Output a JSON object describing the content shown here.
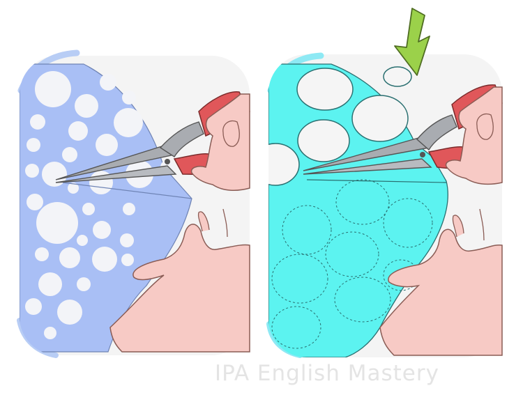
{
  "watermark": {
    "text": "IPA English Mastery"
  },
  "panels": [
    {
      "paper_color": "#a9bff5",
      "dots_color": "#f3f4f8",
      "circle_style": "solid-dots"
    },
    {
      "paper_color": "#5cf3f0",
      "dots_color": "#f5f5f5",
      "circle_style": "outlined-circles-dashed-guides"
    }
  ],
  "colors": {
    "background": "#ffffff",
    "panel_bg": "#f4f4f4",
    "left_accent": "#b8cdf5",
    "right_accent": "#8ee9f4",
    "scissors_handle": "#e0575a",
    "scissors_blade": "#a9acb1",
    "skin": "#f7cac5",
    "arrow": "#9bd14a"
  },
  "icons": [
    "scissors-icon",
    "down-arrow-icon",
    "hand-icon"
  ]
}
